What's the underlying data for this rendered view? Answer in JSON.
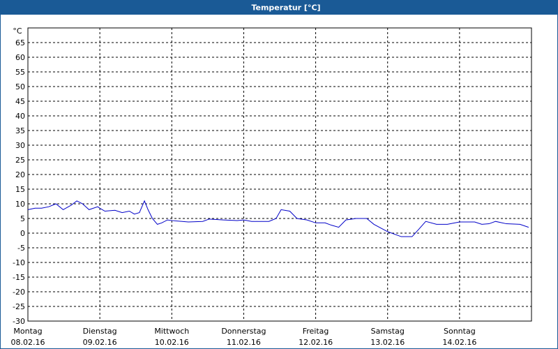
{
  "chart_data": {
    "type": "line",
    "title": "Temperatur [°C]",
    "y_unit": "°C",
    "xlim": [
      0,
      7
    ],
    "ylim": [
      -30,
      70
    ],
    "xticks": [
      {
        "value": 0,
        "label": "Montag",
        "date": "08.02.16"
      },
      {
        "value": 1,
        "label": "Dienstag",
        "date": "09.02.16"
      },
      {
        "value": 2,
        "label": "Mittwoch",
        "date": "10.02.16"
      },
      {
        "value": 3,
        "label": "Donnerstag",
        "date": "11.02.16"
      },
      {
        "value": 4,
        "label": "Freitag",
        "date": "12.02.16"
      },
      {
        "value": 5,
        "label": "Samstag",
        "date": "13.02.16"
      },
      {
        "value": 6,
        "label": "Sonntag",
        "date": "14.02.16"
      }
    ],
    "yticks": [
      -30,
      -25,
      -20,
      -15,
      -10,
      -5,
      0,
      5,
      10,
      15,
      20,
      25,
      30,
      35,
      40,
      45,
      50,
      55,
      60,
      65
    ],
    "grid": true,
    "series": [
      {
        "color": "#0000c8",
        "x": [
          0,
          0.1,
          0.19,
          0.29,
          0.39,
          0.49,
          0.6,
          0.68,
          0.76,
          0.85,
          0.97,
          1,
          1.07,
          1.21,
          1.31,
          1.41,
          1.48,
          1.55,
          1.62,
          1.67,
          1.73,
          1.8,
          1.86,
          1.94,
          2,
          2.23,
          2.43,
          2.52,
          2.72,
          2.91,
          3,
          3.11,
          3.35,
          3.45,
          3.52,
          3.64,
          3.74,
          3.88,
          4,
          4.13,
          4.22,
          4.32,
          4.42,
          4.56,
          4.71,
          4.81,
          5,
          5.19,
          5.34,
          5.44,
          5.53,
          5.68,
          5.83,
          6,
          6.21,
          6.31,
          6.41,
          6.5,
          6.65,
          6.84,
          6.96
        ],
        "values": [
          8,
          8.5,
          8.5,
          9,
          10,
          8,
          9.5,
          11,
          10,
          8,
          9,
          8.5,
          7.5,
          7.8,
          7,
          7.5,
          6.5,
          7,
          11,
          8,
          5,
          3,
          3.5,
          4.5,
          4.3,
          3.8,
          4,
          4.8,
          4.5,
          4.3,
          4.5,
          4,
          4,
          5,
          8,
          7.5,
          5,
          4.5,
          3.5,
          3.5,
          2.7,
          2,
          4.5,
          5,
          5,
          3,
          0.5,
          -1.2,
          -1.2,
          1.5,
          4,
          3,
          3,
          3.8,
          3.8,
          3,
          3.2,
          4,
          3.2,
          3,
          2
        ]
      }
    ]
  }
}
